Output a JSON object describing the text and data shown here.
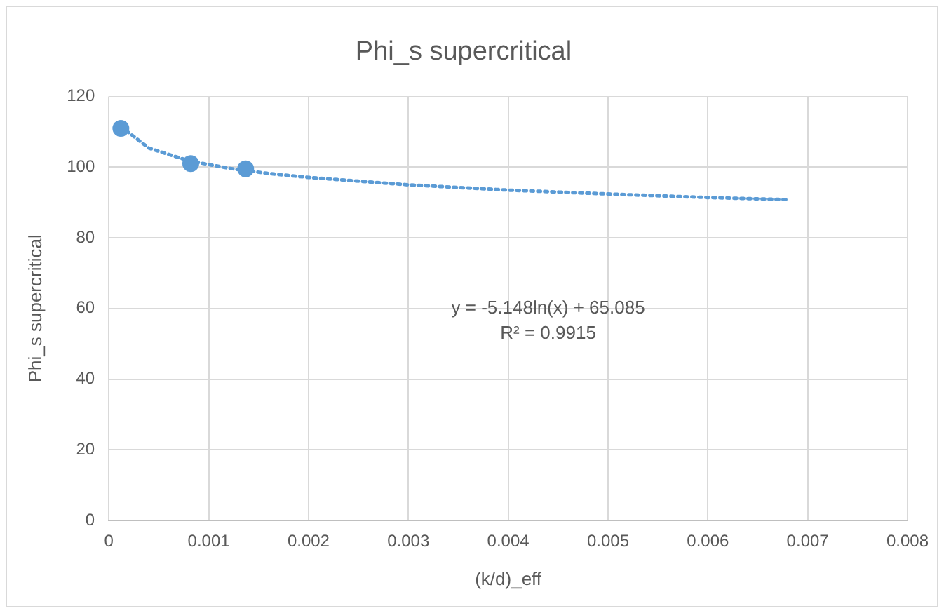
{
  "chart_data": {
    "type": "scatter",
    "title": "Phi_s supercritical",
    "xlabel": "(k/d)_eff",
    "ylabel": "Phi_s supercritical",
    "marker": "circle",
    "series": [
      {
        "color": "#5b9bd5",
        "x": [
          0.00012,
          0.00082,
          0.00137
        ],
        "values": [
          111,
          101,
          99.5
        ]
      },
      {
        "type": "line",
        "color": "#5b9bd5",
        "line_style": "dotted",
        "marker": "none",
        "x": [
          0.00012,
          0.0004,
          0.0008,
          0.0012,
          0.0016,
          0.002,
          0.003,
          0.004,
          0.005,
          0.006,
          0.0068
        ],
        "values": [
          111.5,
          105.4,
          101.8,
          99.7,
          98.2,
          97.1,
          95,
          93.5,
          92.4,
          91.4,
          90.8
        ]
      }
    ],
    "xlim": [
      0,
      0.008
    ],
    "xticks": [
      0,
      0.001,
      0.002,
      0.003,
      0.004,
      0.005,
      0.006,
      0.007,
      0.008
    ],
    "ylim": [
      0,
      120
    ],
    "yticks": [
      0,
      20,
      40,
      60,
      80,
      100,
      120
    ],
    "grid": true,
    "legend": false,
    "annotations": [
      "y = -5.148ln(x) + 65.085",
      "R² = 0.9915"
    ]
  }
}
